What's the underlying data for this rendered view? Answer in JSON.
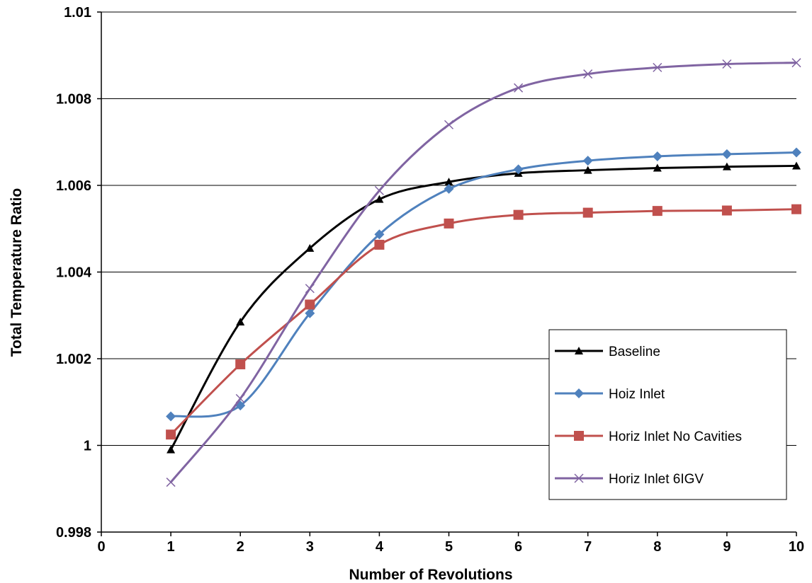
{
  "chart_data": {
    "type": "line",
    "title": "",
    "xlabel": "Number of Revolutions",
    "ylabel": "Total Temperature Ratio",
    "xlim": [
      0,
      10
    ],
    "ylim": [
      0.998,
      1.01
    ],
    "x_ticks": [
      "0",
      "1",
      "2",
      "3",
      "4",
      "5",
      "6",
      "7",
      "8",
      "9",
      "10"
    ],
    "y_ticks": [
      "0.998",
      "1",
      "1.002",
      "1.004",
      "1.006",
      "1.008",
      "1.01"
    ],
    "grid": "horizontal",
    "legend_position": "bottom-right",
    "x": [
      1,
      2,
      3,
      4,
      5,
      6,
      7,
      8,
      9,
      10
    ],
    "series": [
      {
        "name": "Baseline",
        "color": "#000000",
        "marker": "triangle",
        "values": [
          0.9999,
          1.00285,
          1.00455,
          1.00568,
          1.00608,
          1.00628,
          1.00635,
          1.0064,
          1.00643,
          1.00645
        ]
      },
      {
        "name": "Hoiz Inlet",
        "color": "#4f81bd",
        "marker": "diamond",
        "values": [
          1.00067,
          1.00092,
          1.00305,
          1.00487,
          1.00592,
          1.00637,
          1.00657,
          1.00667,
          1.00672,
          1.00676
        ]
      },
      {
        "name": "Horiz Inlet No Cavities",
        "color": "#c0504d",
        "marker": "square",
        "values": [
          1.00025,
          1.00187,
          1.00325,
          1.00463,
          1.00512,
          1.00532,
          1.00537,
          1.00541,
          1.00542,
          1.00545
        ]
      },
      {
        "name": "Horiz Inlet 6IGV",
        "color": "#8064a2",
        "marker": "x",
        "values": [
          0.99915,
          1.00108,
          1.00362,
          1.00588,
          1.0074,
          1.00825,
          1.00857,
          1.00872,
          1.0088,
          1.00883
        ]
      }
    ]
  }
}
